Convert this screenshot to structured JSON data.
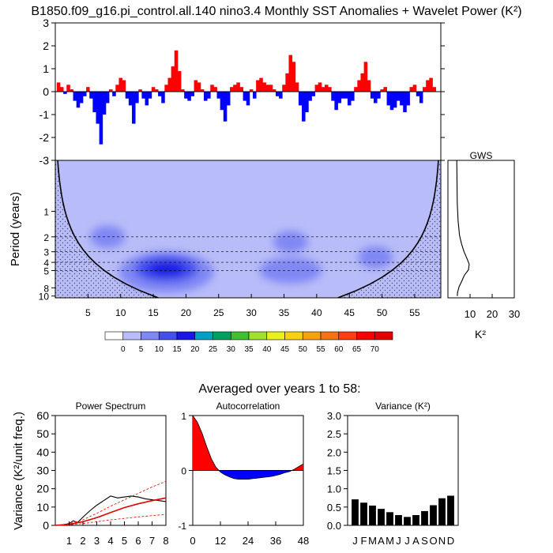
{
  "title": "B1850.f09_g16.pi_control.all.140 nino3.4 Monthly SST Anomalies + Wavelet Power (K²)",
  "colors": {
    "positive": "#ff0000",
    "negative": "#0000ff",
    "cone_stipple": "#4a4a6a",
    "line": "#000000"
  },
  "chart_data": [
    {
      "id": "anomaly",
      "type": "bar",
      "title": "Monthly SST Anomalies",
      "xlabel": "",
      "ylabel": "",
      "xlim": [
        0,
        59
      ],
      "ylim": [
        -3,
        3
      ],
      "yticks": [
        "3",
        "2",
        "1",
        "0",
        "-1",
        "-2",
        "-3"
      ],
      "series_x": [
        0.5,
        1,
        1.5,
        2,
        2.5,
        3,
        3.5,
        4,
        4.5,
        5,
        5.5,
        6,
        6.5,
        7,
        7.5,
        8,
        8.5,
        9,
        9.5,
        10,
        10.5,
        11,
        11.5,
        12,
        12.5,
        13,
        13.5,
        14,
        14.5,
        15,
        15.5,
        16,
        16.5,
        17,
        17.5,
        18,
        18.5,
        19,
        19.5,
        20,
        20.5,
        21,
        21.5,
        22,
        22.5,
        23,
        23.5,
        24,
        24.5,
        25,
        25.5,
        26,
        26.5,
        27,
        27.5,
        28,
        28.5,
        29,
        29.5,
        30,
        30.5,
        31,
        31.5,
        32,
        32.5,
        33,
        33.5,
        34,
        34.5,
        35,
        35.5,
        36,
        36.5,
        37,
        37.5,
        38,
        38.5,
        39,
        39.5,
        40,
        40.5,
        41,
        41.5,
        42,
        42.5,
        43,
        43.5,
        44,
        44.5,
        45,
        45.5,
        46,
        46.5,
        47,
        47.5,
        48,
        48.5,
        49,
        49.5,
        50,
        50.5,
        51,
        51.5,
        52,
        52.5,
        53,
        53.5,
        54,
        54.5,
        55,
        55.5,
        56,
        56.5,
        57,
        57.5,
        58,
        58.5
      ],
      "series_y": [
        0.4,
        0.2,
        -0.1,
        0.3,
        0.1,
        -0.4,
        -0.7,
        -0.5,
        -0.2,
        0.2,
        -0.3,
        -0.9,
        -1.4,
        -2.3,
        -1.0,
        -0.5,
        0.1,
        -0.2,
        0.3,
        0.6,
        0.5,
        -0.3,
        -0.6,
        -1.4,
        -0.5,
        0.1,
        -0.3,
        -0.6,
        -0.3,
        0.2,
        0.1,
        -0.2,
        -0.5,
        0.3,
        0.6,
        1.1,
        1.8,
        0.9,
        0.1,
        -0.3,
        -0.4,
        -0.2,
        0.5,
        0.4,
        0.1,
        -0.4,
        -0.3,
        0.3,
        0.2,
        -0.3,
        -0.8,
        -1.3,
        -0.6,
        0.2,
        0.3,
        0.4,
        0.2,
        -0.4,
        -0.6,
        0.1,
        -0.3,
        0.5,
        0.6,
        0.4,
        0.3,
        0.3,
        0.1,
        -0.2,
        -0.3,
        0.3,
        0.8,
        1.6,
        1.3,
        0.4,
        -0.6,
        -1.3,
        -0.9,
        -0.4,
        -0.2,
        0.3,
        0.4,
        0.2,
        0.3,
        0.2,
        -0.4,
        -0.8,
        -0.5,
        -0.3,
        -0.3,
        -0.6,
        -0.4,
        0.2,
        0.5,
        0.8,
        1.3,
        0.5,
        -0.3,
        -0.5,
        -0.3,
        0.1,
        0.2,
        -0.6,
        -0.8,
        -0.7,
        -0.4,
        -0.6,
        -0.9,
        -0.6,
        0.2,
        0.3,
        -0.2,
        -0.5,
        0.2,
        0.5,
        0.6,
        0.2
      ]
    },
    {
      "id": "wavelet",
      "type": "heatmap",
      "title": "Wavelet Power (K²)",
      "xlabel": "",
      "ylabel": "Period (years)",
      "xlim": [
        0,
        59
      ],
      "xticks": [
        "5",
        "10",
        "15",
        "20",
        "25",
        "30",
        "35",
        "40",
        "45",
        "50",
        "55"
      ],
      "yticks": [
        "1",
        "2",
        "3",
        "4",
        "5",
        "8",
        "10"
      ],
      "ytick_values": [
        1,
        2,
        3,
        4,
        5,
        8,
        10
      ],
      "ylim": [
        0.25,
        10.5
      ],
      "scale": "log",
      "blobs": [
        {
          "x": 17,
          "period": 4.8,
          "power": 15
        },
        {
          "x": 36,
          "period": 5.0,
          "power": 10
        },
        {
          "x": 36,
          "period": 2.3,
          "power": 5
        },
        {
          "x": 49,
          "period": 3.5,
          "power": 10
        },
        {
          "x": 8,
          "period": 2.0,
          "power": 5
        }
      ],
      "cone_of_influence": true
    },
    {
      "id": "gws",
      "type": "line",
      "title": "GWS",
      "xlabel": "K²",
      "ylabel": "",
      "xlim": [
        0,
        30
      ],
      "xticks": [
        "10",
        "20",
        "30"
      ],
      "x": [
        4,
        4.2,
        4.6,
        5.2,
        6.1,
        7.3,
        8.6,
        9.6,
        9.3,
        7.4,
        6.2,
        5.0,
        4.4,
        4.2
      ],
      "period": [
        0.25,
        0.8,
        1.3,
        1.9,
        2.4,
        3.0,
        3.6,
        4.2,
        4.9,
        5.7,
        6.7,
        7.8,
        9.0,
        10.0
      ]
    },
    {
      "id": "colorbar",
      "type": "heatmap",
      "labels": [
        "0",
        "5",
        "10",
        "15",
        "20",
        "25",
        "30",
        "35",
        "40",
        "45",
        "50",
        "55",
        "60",
        "65",
        "70"
      ],
      "colors": [
        "#ffffff",
        "#b8bcf8",
        "#8088f4",
        "#4450ec",
        "#1818e0",
        "#00a0c0",
        "#00a060",
        "#40c030",
        "#a0e030",
        "#e8f020",
        "#f8d018",
        "#f8a010",
        "#f87010",
        "#f84010",
        "#f80000",
        "#e00000"
      ]
    },
    {
      "id": "power_spectrum",
      "type": "line",
      "title": "Power Spectrum",
      "xlabel": "",
      "ylabel": "Variance (K²/unit freq.)",
      "xlim": [
        0,
        8
      ],
      "ylim": [
        0,
        60
      ],
      "xticks": [
        "1",
        "2",
        "3",
        "4",
        "5",
        "6",
        "7",
        "8"
      ],
      "yticks": [
        "0",
        "10",
        "20",
        "30",
        "40",
        "50",
        "60"
      ],
      "series": [
        {
          "name": "spectrum",
          "x": [
            0,
            0.5,
            1,
            1.3,
            1.6,
            2,
            2.5,
            3,
            3.5,
            4,
            4.5,
            5,
            5.5,
            6,
            6.5,
            7,
            7.5,
            8
          ],
          "y": [
            0,
            0.2,
            1.0,
            2.5,
            1.5,
            4.5,
            8,
            11,
            13.5,
            16,
            15,
            15.5,
            16,
            15.5,
            14.5,
            14,
            13.5,
            13
          ]
        },
        {
          "name": "red-noise",
          "x": [
            0,
            1,
            2,
            3,
            4,
            5,
            6,
            7,
            8
          ],
          "y": [
            0,
            0.5,
            2,
            4.2,
            7,
            9.7,
            11.8,
            13.5,
            15
          ]
        },
        {
          "name": "upper",
          "x": [
            0,
            1,
            2,
            3,
            4,
            5,
            6,
            7,
            8
          ],
          "y": [
            0,
            0.8,
            3,
            6.5,
            10.5,
            14,
            17.5,
            21,
            24
          ]
        },
        {
          "name": "lower",
          "x": [
            0,
            1,
            2,
            3,
            4,
            5,
            6,
            7,
            8
          ],
          "y": [
            0,
            0.3,
            1.0,
            2.0,
            3.0,
            3.8,
            4.6,
            5.3,
            6.0
          ]
        }
      ]
    },
    {
      "id": "autocorrelation",
      "type": "area",
      "title": "Autocorrelation",
      "xlabel": "",
      "ylabel": "",
      "xlim": [
        0,
        48
      ],
      "ylim": [
        -1,
        1
      ],
      "xticks": [
        "0",
        "12",
        "24",
        "36",
        "48"
      ],
      "yticks": [
        "1",
        "0",
        "-1"
      ],
      "x": [
        0,
        2,
        4,
        6,
        8,
        10,
        12,
        14,
        16,
        18,
        20,
        22,
        24,
        26,
        28,
        30,
        32,
        34,
        36,
        38,
        40,
        42,
        44,
        46,
        48
      ],
      "y": [
        1.0,
        0.88,
        0.68,
        0.44,
        0.22,
        0.06,
        -0.03,
        -0.08,
        -0.12,
        -0.15,
        -0.16,
        -0.16,
        -0.16,
        -0.15,
        -0.14,
        -0.13,
        -0.12,
        -0.11,
        -0.09,
        -0.07,
        -0.04,
        -0.02,
        0.02,
        0.07,
        0.12
      ]
    },
    {
      "id": "variance",
      "type": "bar",
      "title": "Variance (K²)",
      "xlabel": "",
      "ylabel": "",
      "ylim": [
        0,
        3.0
      ],
      "yticks": [
        "0.0",
        "0.5",
        "1.0",
        "1.5",
        "2.0",
        "2.5",
        "3.0"
      ],
      "categories": [
        "J",
        "F",
        "M",
        "A",
        "M",
        "J",
        "J",
        "A",
        "S",
        "O",
        "N",
        "D"
      ],
      "values": [
        0.71,
        0.62,
        0.54,
        0.45,
        0.36,
        0.28,
        0.23,
        0.28,
        0.39,
        0.55,
        0.74,
        0.81
      ]
    }
  ],
  "avg_title": "Averaged over years 1 to 58:"
}
